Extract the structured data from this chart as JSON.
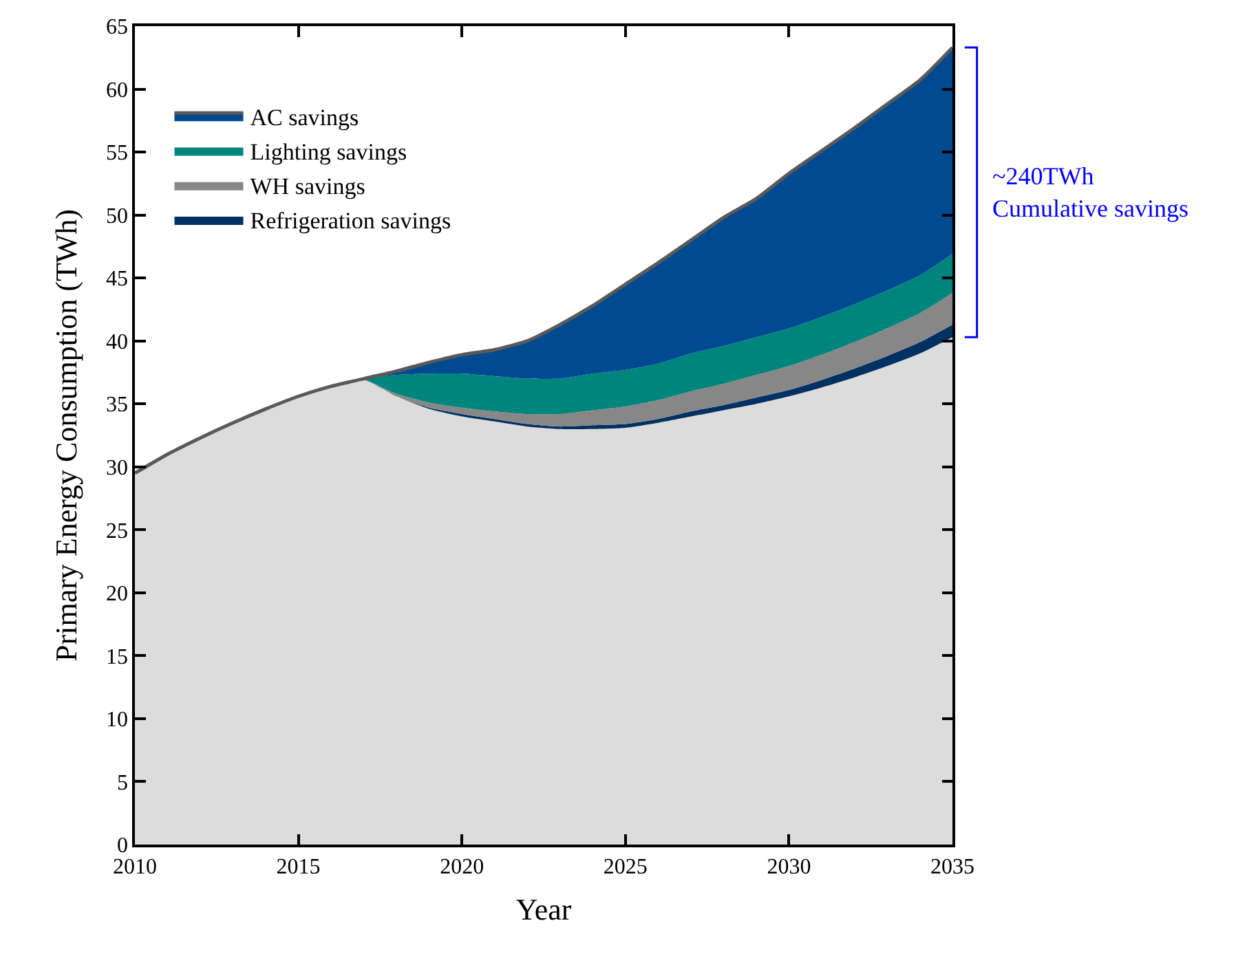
{
  "chart_data": {
    "type": "area",
    "stacked": true,
    "xlabel": "Year",
    "ylabel": "Primary Energy Consumption (TWh)",
    "x": [
      2010,
      2011,
      2012,
      2013,
      2014,
      2015,
      2016,
      2017,
      2018,
      2019,
      2020,
      2021,
      2022,
      2023,
      2024,
      2025,
      2026,
      2027,
      2028,
      2029,
      2030,
      2031,
      2032,
      2033,
      2034,
      2035
    ],
    "series": [
      {
        "color": "#dcdcdc",
        "values": [
          29.5,
          31,
          32.3,
          33.5,
          34.6,
          35.6,
          36.4,
          36.9,
          35.6,
          34.6,
          34.0,
          33.6,
          33.2,
          33.0,
          33.0,
          33.1,
          33.5,
          34.0,
          34.5,
          35.0,
          35.6,
          36.3,
          37.1,
          38.0,
          39.0,
          40.3
        ]
      },
      {
        "name": "Refrigeration savings",
        "color": "#003163",
        "values": [
          0,
          0,
          0,
          0,
          0,
          0,
          0,
          0,
          0,
          0.1,
          0.2,
          0.2,
          0.2,
          0.2,
          0.3,
          0.3,
          0.3,
          0.4,
          0.4,
          0.5,
          0.5,
          0.6,
          0.7,
          0.8,
          0.9,
          1.0
        ]
      },
      {
        "name": "WH savings",
        "color": "#878787",
        "values": [
          0,
          0,
          0,
          0,
          0,
          0,
          0,
          0,
          0.2,
          0.4,
          0.5,
          0.6,
          0.8,
          1.0,
          1.2,
          1.4,
          1.5,
          1.6,
          1.7,
          1.8,
          1.9,
          2.0,
          2.1,
          2.2,
          2.3,
          2.5
        ]
      },
      {
        "name": "Lighting savings",
        "color": "#00857d",
        "values": [
          0,
          0,
          0,
          0,
          0,
          0,
          0,
          0.1,
          1.5,
          2.3,
          2.7,
          2.8,
          2.8,
          2.8,
          2.9,
          2.9,
          2.9,
          3.0,
          3.0,
          3.0,
          3.0,
          3.0,
          3.0,
          3.0,
          3.0,
          3.1
        ]
      },
      {
        "name": "AC savings",
        "color": "#004a91",
        "values": [
          0,
          0,
          0,
          0,
          0,
          0,
          0,
          0,
          0.3,
          0.9,
          1.5,
          2.1,
          3.0,
          4.3,
          5.4,
          6.8,
          8.0,
          9.0,
          10.2,
          11.0,
          12.3,
          13.2,
          14.0,
          14.8,
          15.5,
          16.4
        ]
      }
    ],
    "xlim": [
      2010,
      2035
    ],
    "xticks": [
      2010,
      2015,
      2020,
      2025,
      2030,
      2035
    ],
    "ylim": [
      0,
      65
    ],
    "yticks": [
      0,
      5,
      10,
      15,
      20,
      25,
      30,
      35,
      40,
      45,
      50,
      55,
      60,
      65
    ],
    "annotations": [
      "~240TWh\nCumulative savings"
    ],
    "legend": "top left",
    "marker": "none"
  }
}
